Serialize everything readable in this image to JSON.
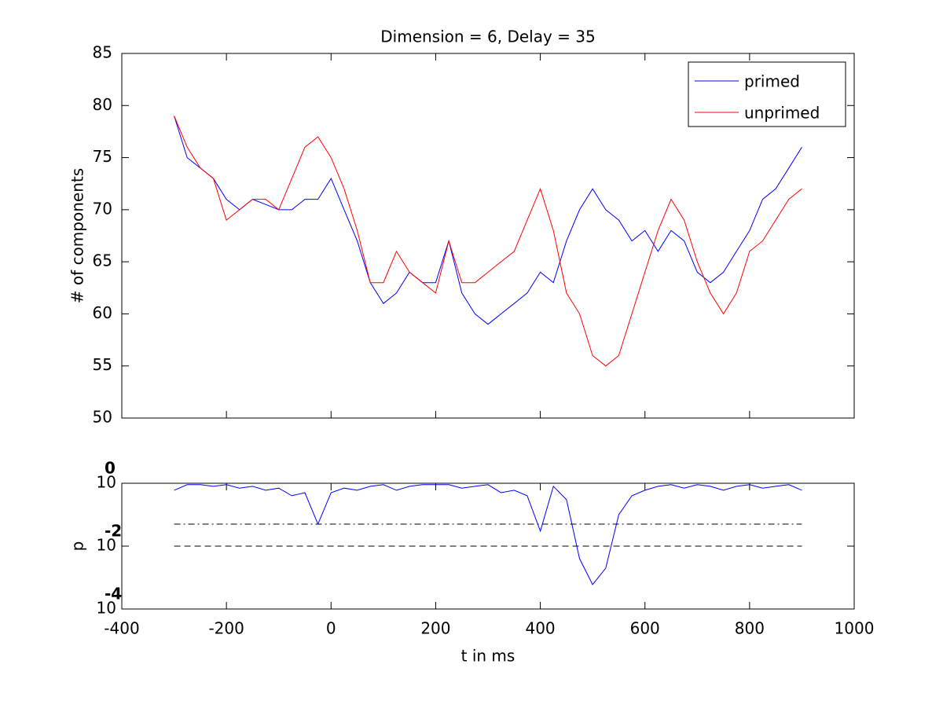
{
  "chart_data": [
    {
      "type": "line",
      "title": "Dimension  = 6, Delay = 35",
      "ylabel": "# of components",
      "x": [
        -300,
        -275,
        -250,
        -225,
        -200,
        -175,
        -150,
        -125,
        -100,
        -75,
        -50,
        -25,
        0,
        25,
        50,
        75,
        100,
        125,
        150,
        175,
        200,
        225,
        250,
        275,
        300,
        325,
        350,
        375,
        400,
        425,
        450,
        475,
        500,
        525,
        550,
        575,
        600,
        625,
        650,
        675,
        700,
        725,
        750,
        775,
        800,
        825,
        850,
        875,
        900
      ],
      "series": [
        {
          "name": "primed",
          "color": "#0000ff",
          "values": [
            79,
            75,
            74,
            73,
            71,
            70,
            71,
            70.5,
            70,
            70,
            71,
            71,
            73,
            70,
            67,
            63,
            61,
            62,
            64,
            63,
            63,
            67,
            62,
            60,
            59,
            60,
            61,
            62,
            64,
            63,
            67,
            70,
            72,
            70,
            69,
            67,
            68,
            66,
            68,
            67,
            64,
            63,
            64,
            66,
            68,
            71,
            72,
            74,
            76
          ]
        },
        {
          "name": "unprimed",
          "color": "#ff0000",
          "values": [
            79,
            76,
            74,
            73,
            69,
            70,
            71,
            71,
            70,
            73,
            76,
            77,
            75,
            72,
            68,
            63,
            63,
            66,
            64,
            63,
            62,
            67,
            63,
            63,
            64,
            65,
            66,
            69,
            72,
            68,
            62,
            60,
            56,
            55,
            56,
            60,
            64,
            68,
            71,
            69,
            65,
            62,
            60,
            62,
            66,
            67,
            69,
            71,
            72
          ]
        }
      ],
      "ylim": [
        50,
        85
      ],
      "yticks": [
        50,
        55,
        60,
        65,
        70,
        75,
        80,
        85
      ],
      "legend": "upper right"
    },
    {
      "type": "line",
      "ylabel": "p",
      "xlabel": "t in ms",
      "log_y": true,
      "x": [
        -300,
        -275,
        -250,
        -225,
        -200,
        -175,
        -150,
        -125,
        -100,
        -75,
        -50,
        -25,
        0,
        25,
        50,
        75,
        100,
        125,
        150,
        175,
        200,
        225,
        250,
        275,
        300,
        325,
        350,
        375,
        400,
        425,
        450,
        475,
        500,
        525,
        550,
        575,
        600,
        625,
        650,
        675,
        700,
        725,
        750,
        775,
        800,
        825,
        850,
        875,
        900
      ],
      "series": [
        {
          "color": "#0000ff",
          "values": [
            0.6,
            0.9,
            0.9,
            0.8,
            0.9,
            0.7,
            0.8,
            0.6,
            0.7,
            0.4,
            0.5,
            0.05,
            0.5,
            0.7,
            0.6,
            0.8,
            0.9,
            0.6,
            0.8,
            0.9,
            0.9,
            0.9,
            0.7,
            0.8,
            0.9,
            0.5,
            0.6,
            0.4,
            0.03,
            0.8,
            0.3,
            0.004,
            0.0006,
            0.002,
            0.1,
            0.4,
            0.6,
            0.8,
            0.9,
            0.7,
            0.9,
            0.8,
            0.6,
            0.8,
            0.9,
            0.7,
            0.8,
            0.9,
            0.6
          ]
        }
      ],
      "thresholds": [
        {
          "value": 0.05,
          "style": "dashdot"
        },
        {
          "value": 0.01,
          "style": "dashed"
        }
      ],
      "xlim": [
        -400,
        1000
      ],
      "xticks": [
        -400,
        -200,
        0,
        200,
        400,
        600,
        800,
        1000
      ],
      "ylim": [
        0.0001,
        1
      ],
      "yticks": [
        {
          "value": 1,
          "label": "10",
          "exponent": "0"
        },
        {
          "value": 0.01,
          "label": "10",
          "exponent": "-2"
        },
        {
          "value": 0.0001,
          "label": "10",
          "exponent": "-4"
        }
      ]
    }
  ]
}
